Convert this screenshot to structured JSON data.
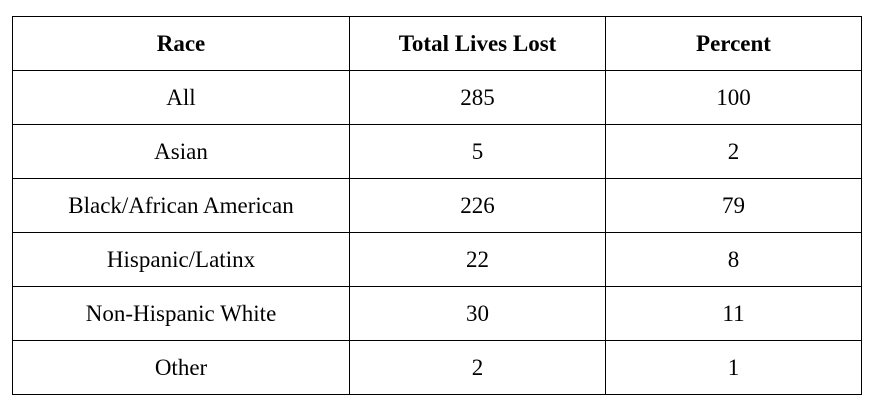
{
  "table": {
    "header": [
      "Race",
      "Total Lives Lost",
      "Percent"
    ],
    "rows": [
      [
        "All",
        285,
        100
      ],
      [
        "Asian",
        5,
        2
      ],
      [
        "Black/African American",
        226,
        79
      ],
      [
        "Hispanic/Latinx",
        22,
        8
      ],
      [
        "Non-Hispanic White",
        30,
        11
      ],
      [
        "Other",
        2,
        1
      ]
    ]
  }
}
